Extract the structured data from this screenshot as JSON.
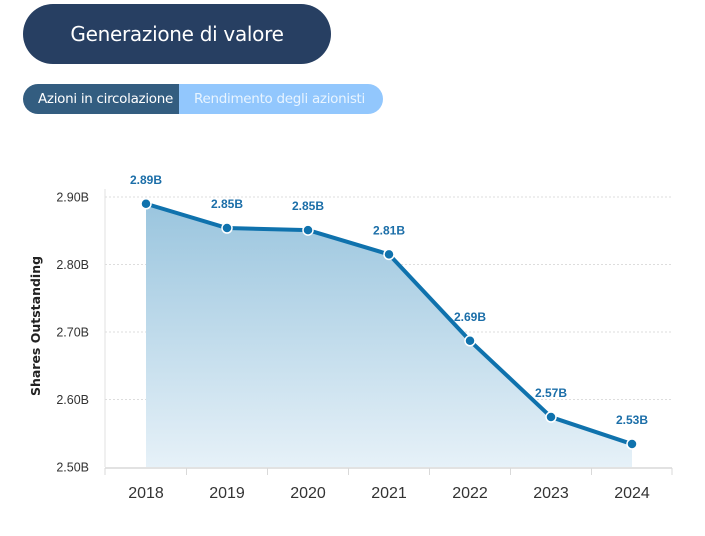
{
  "header": {
    "title": "Generazione di valore"
  },
  "tabs": [
    {
      "label": "Azioni in circolazione",
      "active": true
    },
    {
      "label": "Rendimento degli azionisti",
      "active": false
    }
  ],
  "colors": {
    "line": "#0f72ad",
    "fill_top": "#9ac5de",
    "fill_bottom": "#e6f1f8",
    "title_bg": "#273f62",
    "tab_active": "#335d80",
    "tab_inactive": "#92c7fd"
  },
  "chart_data": {
    "type": "area",
    "title": "",
    "xlabel": "",
    "ylabel": "Shares Outstanding",
    "categories": [
      "2018",
      "2019",
      "2020",
      "2021",
      "2022",
      "2023",
      "2024"
    ],
    "values": [
      2.89,
      2.854,
      2.851,
      2.815,
      2.687,
      2.574,
      2.534
    ],
    "data_labels": [
      "2.89B",
      "2.85B",
      "2.85B",
      "2.81B",
      "2.69B",
      "2.57B",
      "2.53B"
    ],
    "ylim": [
      2.5,
      2.9
    ],
    "yticks": [
      2.5,
      2.6,
      2.7,
      2.8,
      2.9
    ],
    "ytick_labels": [
      "2.50B",
      "2.60B",
      "2.70B",
      "2.80B",
      "2.90B"
    ],
    "grid": true,
    "unit": "B"
  }
}
